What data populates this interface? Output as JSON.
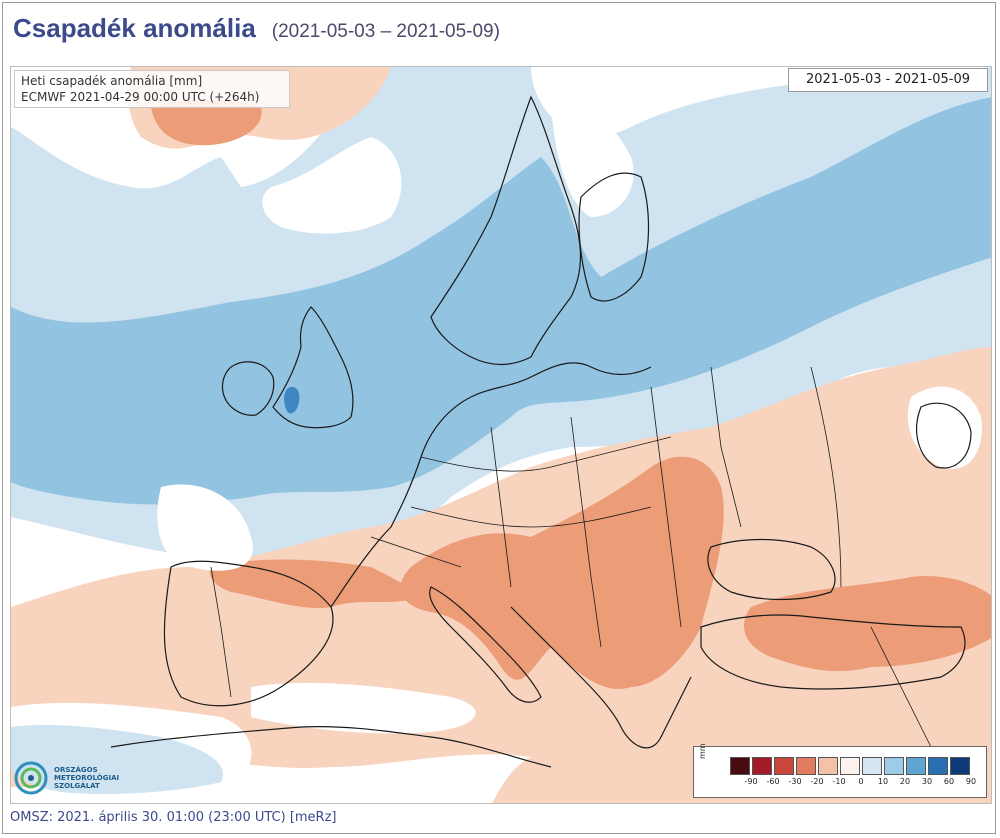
{
  "header": {
    "title": "Csapadék anomália",
    "subtitle": "(2021-05-03 – 2021-05-09)"
  },
  "info_box": {
    "line1": "Heti csapadék anomália [mm]",
    "line2": "ECMWF 2021-04-29 00:00 UTC (+264h)"
  },
  "date_box": {
    "text": "2021-05-03 - 2021-05-09"
  },
  "legend": {
    "unit": "mm",
    "swatch_colors": [
      "#4a0a12",
      "#a31b27",
      "#c8473a",
      "#e27c5e",
      "#f3c2a7",
      "#fdf3ec",
      "#d4e6f2",
      "#9ecbe5",
      "#5ea5d2",
      "#2a6fb3",
      "#0d3b7a"
    ],
    "ticks": [
      "-90",
      "-60",
      "-30",
      "-20",
      "-10",
      "0",
      "10",
      "20",
      "30",
      "60",
      "90"
    ]
  },
  "logo": {
    "icon": "omsz-logo-icon",
    "lines": [
      "ORSZÁGOS",
      "METEOROLÓGIAI",
      "SZOLGÁLAT"
    ]
  },
  "footer": {
    "text": "OMSZ: 2021. április 30. 01:00 (23:00 UTC)  [meRz]"
  },
  "colors": {
    "light_blue": "#cfe3f1",
    "mid_blue": "#92c3e1",
    "light_orange": "#f8d4bf",
    "mid_orange": "#ec9c77",
    "coast": "#1a1a1a"
  }
}
